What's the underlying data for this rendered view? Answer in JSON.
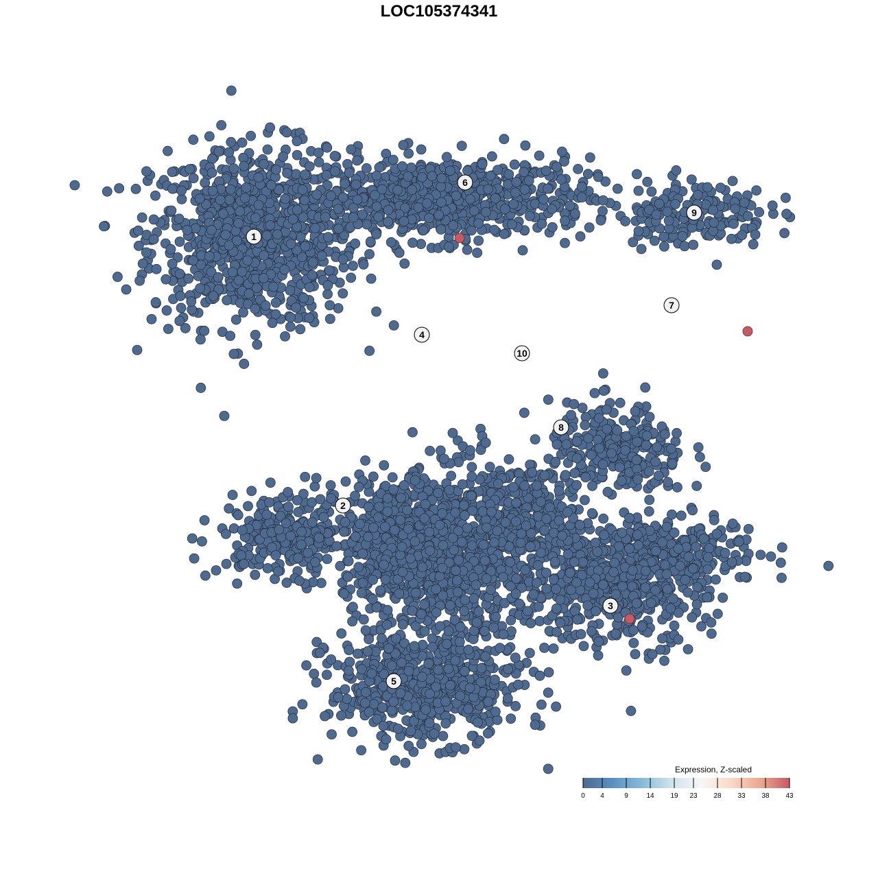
{
  "chart_data": {
    "type": "scatter",
    "title": "LOC105374341",
    "xlabel": "",
    "ylabel": "",
    "axes_visible": false,
    "grid": false,
    "xlim": [
      -44,
      50
    ],
    "ylim": [
      -46,
      46
    ],
    "point_color_default": "#4e6a8e",
    "point_color_high": "#c65a64",
    "note_points": "clusters are approximated as point clouds; expression 0 for all cells except highlighted ones",
    "clusters": [
      {
        "label": "1",
        "center": [
          -27,
          29.5
        ],
        "spread": [
          15,
          13
        ],
        "count": 900
      },
      {
        "label": "6",
        "center": [
          0,
          35
        ],
        "spread": [
          22,
          6
        ],
        "count": 700
      },
      {
        "label": "4",
        "center": [
          -6,
          -15
        ],
        "spread": [
          8,
          9
        ],
        "count": 450
      },
      {
        "label": "10",
        "center": [
          12,
          -11
        ],
        "spread": [
          6,
          7
        ],
        "count": 140
      },
      {
        "label": "7",
        "center": [
          32,
          -16
        ],
        "spread": [
          15,
          5
        ],
        "count": 260
      },
      {
        "label": "9",
        "center": [
          37,
          33
        ],
        "spread": [
          11,
          5
        ],
        "count": 170
      },
      {
        "label": "8",
        "center": [
          26,
          -2
        ],
        "spread": [
          10,
          7
        ],
        "count": 280
      },
      {
        "label": "2",
        "center": [
          -22,
          -14
        ],
        "spread": [
          10,
          6
        ],
        "count": 260
      },
      {
        "label": "5",
        "center": [
          -2,
          -36
        ],
        "spread": [
          14,
          8
        ],
        "count": 620
      },
      {
        "label": "3",
        "center": [
          26,
          -22
        ],
        "spread": [
          13,
          8
        ],
        "count": 450
      },
      {
        "label": "",
        "center": [
          4,
          -16
        ],
        "spread": [
          14,
          12
        ],
        "count": 900
      }
    ],
    "cluster_label_positions": [
      {
        "label": "1",
        "x": -27,
        "y": 29.5
      },
      {
        "label": "6",
        "x": 3.8,
        "y": 37.4
      },
      {
        "label": "4",
        "x": -2.5,
        "y": 15.2
      },
      {
        "label": "10",
        "x": 12.1,
        "y": 12.5
      },
      {
        "label": "7",
        "x": 33.9,
        "y": 19.5
      },
      {
        "label": "9",
        "x": 37.2,
        "y": 33
      },
      {
        "label": "8",
        "x": 17.8,
        "y": 1.7
      },
      {
        "label": "2",
        "x": -14,
        "y": -9.7
      },
      {
        "label": "5",
        "x": -6.6,
        "y": -35.3
      },
      {
        "label": "3",
        "x": 25,
        "y": -24.3
      }
    ],
    "highlighted_points": [
      {
        "x": 3,
        "y": 29.3,
        "value": 43
      },
      {
        "x": 45,
        "y": 15.7,
        "value": 43
      },
      {
        "x": 27.8,
        "y": -26.2,
        "value": 43
      }
    ],
    "colorbar": {
      "title": "Expression, Z-scaled",
      "ticks": [
        "0",
        "4",
        "9",
        "14",
        "19",
        "23",
        "28",
        "33",
        "38",
        "43"
      ],
      "range": [
        0,
        43
      ],
      "colors": [
        "#4e6a8e",
        "#5b8fc2",
        "#86bcd9",
        "#cfe3ee",
        "#f7f7f7",
        "#fbd9c8",
        "#eda88f",
        "#c65a64"
      ],
      "position": "bottom-right"
    }
  }
}
